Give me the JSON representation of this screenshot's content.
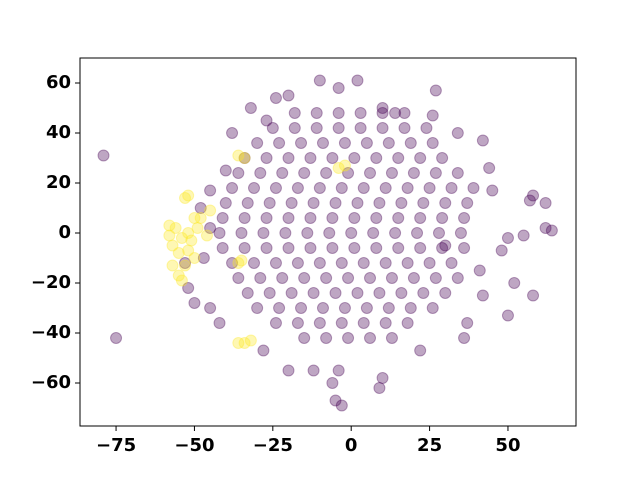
{
  "chart_data": {
    "type": "scatter",
    "xlim": [
      -86.5,
      71.7
    ],
    "ylim": [
      -77.2,
      70
    ],
    "xticks": [
      {
        "value": -75,
        "label": "−75"
      },
      {
        "value": -50,
        "label": "−50"
      },
      {
        "value": -25,
        "label": "−25"
      },
      0,
      25,
      50
    ],
    "yticks": [
      {
        "value": -60,
        "label": "−60"
      },
      {
        "value": -40,
        "label": "−40"
      },
      {
        "value": -20,
        "label": "−20"
      },
      0,
      20,
      40,
      60
    ],
    "alpha": 0.35,
    "series": [
      {
        "color": "#440154",
        "x": [
          -18,
          -11,
          -4,
          3,
          10,
          17,
          -25,
          -18,
          -11,
          -4,
          3,
          10,
          17,
          24,
          -30,
          -23,
          -16,
          -9,
          -2,
          5,
          12,
          19,
          26,
          -34,
          -27,
          -20,
          -13,
          -6,
          1,
          8,
          15,
          22,
          29,
          -36,
          -29,
          -22,
          -15,
          -8,
          -1,
          6,
          13,
          20,
          27,
          34,
          -38,
          -31,
          -24,
          -17,
          -10,
          -3,
          4,
          11,
          18,
          25,
          32,
          39,
          -40,
          -33,
          -26,
          -19,
          -12,
          -5,
          2,
          9,
          16,
          23,
          30,
          37,
          -41,
          -34,
          -27,
          -20,
          -13,
          -6,
          1,
          8,
          15,
          22,
          29,
          36,
          -42,
          -35,
          -28,
          -21,
          -14,
          -7,
          0,
          7,
          14,
          21,
          28,
          35,
          -41,
          -34,
          -27,
          -20,
          -13,
          -6,
          1,
          8,
          15,
          22,
          29,
          36,
          -38,
          -31,
          -24,
          -17,
          -10,
          -3,
          4,
          11,
          18,
          25,
          32,
          -36,
          -29,
          -22,
          -15,
          -8,
          -1,
          6,
          13,
          20,
          27,
          34,
          -33,
          -26,
          -19,
          -12,
          -5,
          2,
          9,
          16,
          23,
          30,
          -30,
          -23,
          -16,
          -9,
          -2,
          5,
          12,
          19,
          26,
          -24,
          -17,
          -10,
          -3,
          4,
          11,
          18,
          -15,
          -8,
          -1,
          6,
          13,
          -20,
          -24,
          2,
          -4,
          10,
          14,
          27,
          26,
          34,
          42,
          44,
          45,
          57,
          62,
          58,
          50,
          48,
          55,
          62,
          52,
          58,
          50,
          42,
          37,
          36,
          22,
          10,
          9,
          -4,
          -12,
          -6,
          -5,
          -3,
          -20,
          -28,
          -42,
          -45,
          -50,
          -52,
          -47,
          -53,
          -45,
          -48,
          -45,
          -40,
          -38,
          -32,
          -27,
          -79,
          -75,
          64,
          -10,
          30,
          41
        ],
        "y": [
          48,
          48,
          48,
          48,
          48,
          48,
          42,
          42,
          42,
          42,
          42,
          42,
          42,
          42,
          36,
          36,
          36,
          36,
          36,
          36,
          36,
          36,
          36,
          30,
          30,
          30,
          30,
          30,
          30,
          30,
          30,
          30,
          30,
          24,
          24,
          24,
          24,
          24,
          24,
          24,
          24,
          24,
          24,
          24,
          18,
          18,
          18,
          18,
          18,
          18,
          18,
          18,
          18,
          18,
          18,
          18,
          12,
          12,
          12,
          12,
          12,
          12,
          12,
          12,
          12,
          12,
          12,
          12,
          6,
          6,
          6,
          6,
          6,
          6,
          6,
          6,
          6,
          6,
          6,
          6,
          0,
          0,
          0,
          0,
          0,
          0,
          0,
          0,
          0,
          0,
          0,
          0,
          -6,
          -6,
          -6,
          -6,
          -6,
          -6,
          -6,
          -6,
          -6,
          -6,
          -6,
          -6,
          -12,
          -12,
          -12,
          -12,
          -12,
          -12,
          -12,
          -12,
          -12,
          -12,
          -12,
          -18,
          -18,
          -18,
          -18,
          -18,
          -18,
          -18,
          -18,
          -18,
          -18,
          -18,
          -24,
          -24,
          -24,
          -24,
          -24,
          -24,
          -24,
          -24,
          -24,
          -24,
          -30,
          -30,
          -30,
          -30,
          -30,
          -30,
          -30,
          -30,
          -30,
          -36,
          -36,
          -36,
          -36,
          -36,
          -36,
          -36,
          -42,
          -42,
          -42,
          -42,
          -42,
          55,
          54,
          61,
          58,
          50,
          48,
          57,
          47,
          40,
          37,
          26,
          17,
          13,
          12,
          15,
          -2,
          -7,
          -1,
          2,
          -20,
          -25,
          -33,
          -25,
          -36,
          -42,
          -47,
          -58,
          -62,
          -55,
          -55,
          -60,
          -67,
          -69,
          -55,
          -47,
          -36,
          -30,
          -28,
          -22,
          -10,
          -12,
          2,
          10,
          17,
          25,
          40,
          50,
          45,
          31,
          -42,
          1,
          61,
          -5,
          -15
        ]
      },
      {
        "color": "#fde725",
        "x": [
          -56,
          -54,
          -58,
          -52,
          -57,
          -55,
          -52,
          -50,
          -57,
          -55,
          -54,
          -53,
          -52,
          -50,
          -48,
          -49,
          -46,
          -45,
          -35,
          -36,
          -34,
          -36,
          -32,
          -36,
          -34,
          -4,
          -2,
          -51,
          -58,
          -53
        ],
        "y": [
          2,
          -2,
          -1,
          0,
          -5,
          -8,
          -7,
          -10,
          -13,
          -17,
          -19,
          14,
          15,
          6,
          6,
          2,
          -1,
          9,
          -11,
          -12,
          -44,
          -44,
          -43,
          31,
          30,
          26,
          27,
          -3,
          3,
          -13
        ]
      }
    ]
  }
}
